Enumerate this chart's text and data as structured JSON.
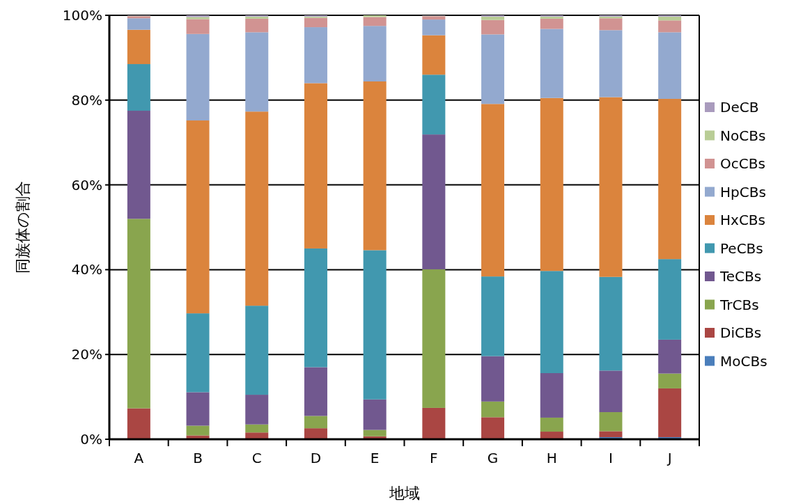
{
  "chart_data": {
    "type": "bar",
    "stacked": true,
    "xlabel": "地域",
    "ylabel": "同族体の割合",
    "categories": [
      "A",
      "B",
      "C",
      "D",
      "E",
      "F",
      "G",
      "H",
      "I",
      "J"
    ],
    "ylim": [
      0,
      100
    ],
    "yticks": [
      {
        "value": 0,
        "label": "0%"
      },
      {
        "value": 20,
        "label": "20%"
      },
      {
        "value": 40,
        "label": "40%"
      },
      {
        "value": 60,
        "label": "60%"
      },
      {
        "value": 80,
        "label": "80%"
      },
      {
        "value": 100,
        "label": "100%"
      }
    ],
    "grid": "y",
    "legend": "right",
    "series": [
      {
        "name": "MoCBs",
        "color": "#4a7ebb",
        "values": [
          0,
          0,
          0,
          0,
          0,
          0,
          0.1,
          0,
          0.5,
          0.5
        ]
      },
      {
        "name": "DiCBs",
        "color": "#aa4643",
        "values": [
          7.3,
          0.9,
          1.6,
          2.6,
          0.7,
          7.4,
          5.1,
          1.8,
          1.4,
          11.5
        ]
      },
      {
        "name": "TrCBs",
        "color": "#89a54e",
        "values": [
          44.7,
          2.3,
          1.9,
          2.9,
          1.5,
          32.7,
          3.7,
          3.3,
          4.5,
          3.5
        ]
      },
      {
        "name": "TeCBs",
        "color": "#71588f",
        "values": [
          25.5,
          7.9,
          7.0,
          11.5,
          7.2,
          31.8,
          10.7,
          10.5,
          9.8,
          8.0
        ]
      },
      {
        "name": "PeCBs",
        "color": "#4198af",
        "values": [
          11.0,
          18.6,
          21.0,
          28.0,
          35.2,
          14.1,
          18.8,
          24.1,
          22.1,
          19.0
        ]
      },
      {
        "name": "HxCBs",
        "color": "#db843d",
        "values": [
          8.1,
          45.5,
          45.8,
          39.0,
          39.8,
          9.3,
          40.7,
          40.8,
          42.4,
          37.8
        ]
      },
      {
        "name": "HpCBs",
        "color": "#93a9cf",
        "values": [
          2.7,
          20.4,
          18.7,
          13.2,
          13.1,
          3.7,
          16.4,
          16.3,
          15.8,
          15.7
        ]
      },
      {
        "name": "OcCBs",
        "color": "#d19392",
        "values": [
          0.5,
          3.5,
          3.2,
          2.2,
          2.1,
          0.8,
          3.4,
          2.4,
          2.8,
          2.8
        ]
      },
      {
        "name": "NoCBs",
        "color": "#b9cd96",
        "values": [
          0.1,
          0.5,
          0.5,
          0.3,
          0.4,
          0.1,
          0.8,
          0.5,
          0.4,
          0.9
        ]
      },
      {
        "name": "DeCB",
        "color": "#a99bbd",
        "values": [
          0.1,
          0.4,
          0.3,
          0.3,
          0,
          0.1,
          0.3,
          0.3,
          0.3,
          0.3
        ]
      }
    ]
  }
}
